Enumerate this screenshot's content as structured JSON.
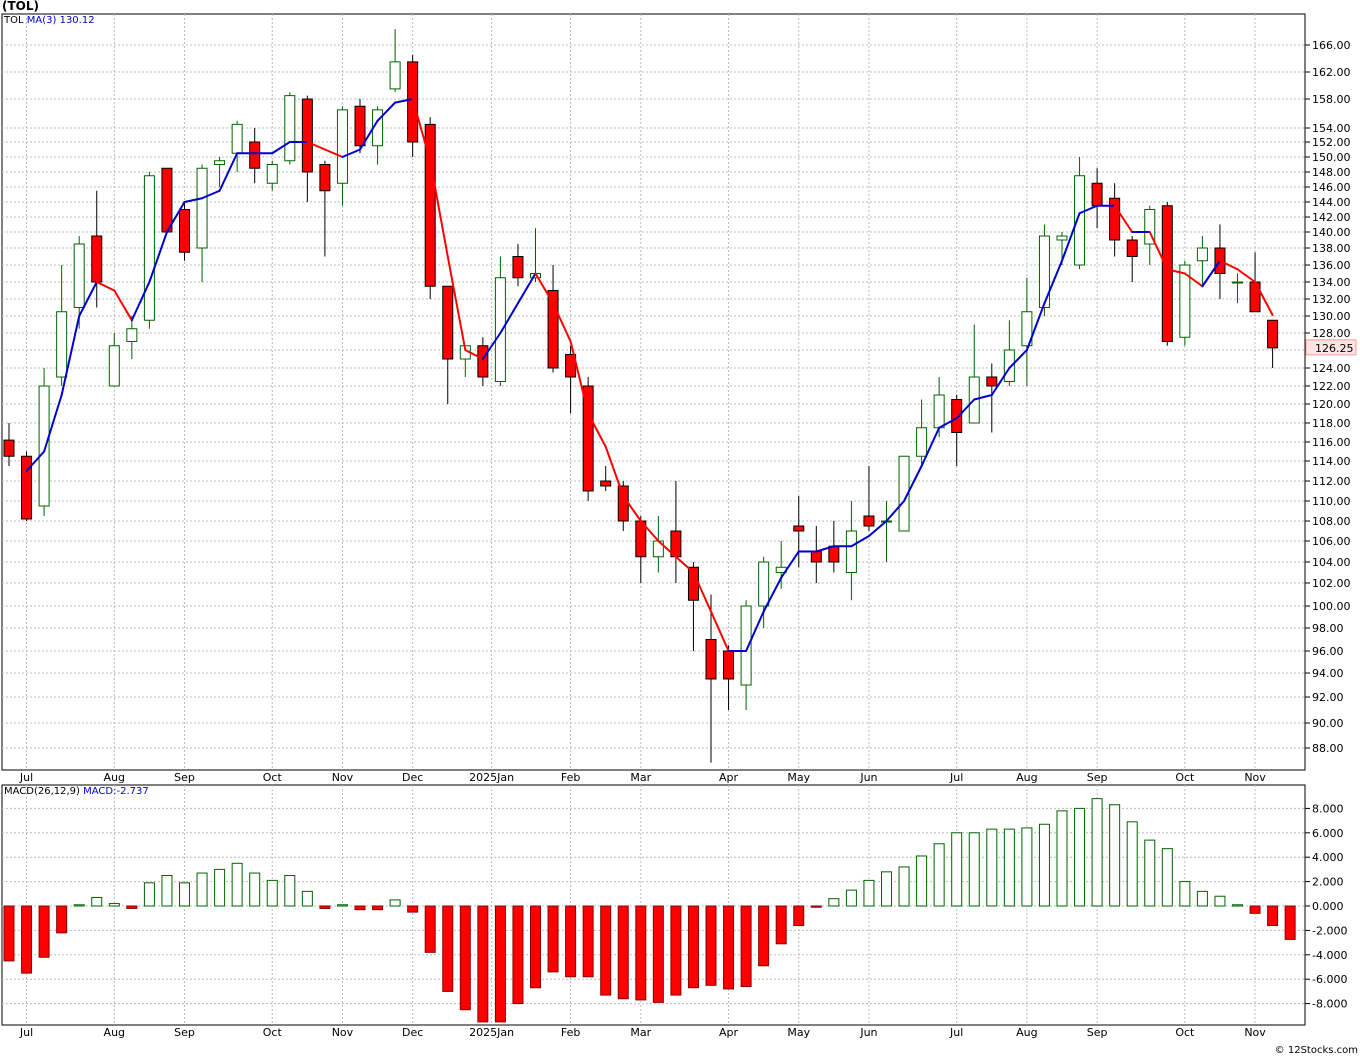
{
  "title": "(TOL)",
  "footer": "© 12Stocks.com",
  "price_panel": {
    "ticker_label": "TOL",
    "ma_label": "MA(3)",
    "ma_value": "130.12",
    "last_price_badge": "126.25",
    "up_color": "#006400",
    "down_color": "#ff0000",
    "ma_up_color": "#0000cc",
    "ma_down_color": "#ff0000"
  },
  "macd_panel": {
    "label": "MACD(26,12,9)",
    "value_label": "MACD:-2.737"
  },
  "chart_data": [
    {
      "type": "candlestick",
      "title": "(TOL)",
      "interval": "weekly",
      "ylim": [
        85,
        169
      ],
      "y_ticks": [
        "88.00",
        "90.00",
        "92.00",
        "94.00",
        "96.00",
        "98.00",
        "100.00",
        "102.00",
        "104.00",
        "106.00",
        "108.00",
        "110.00",
        "112.00",
        "114.00",
        "116.00",
        "118.00",
        "120.00",
        "122.00",
        "124.00",
        "126.00",
        "128.00",
        "130.00",
        "132.00",
        "134.00",
        "136.00",
        "138.00",
        "140.00",
        "142.00",
        "144.00",
        "146.00",
        "148.00",
        "150.00",
        "152.00",
        "154.00",
        "158.00",
        "162.00",
        "166.00"
      ],
      "x_tick_labels": [
        {
          "label": "Jul",
          "index": 1
        },
        {
          "label": "Aug",
          "index": 6
        },
        {
          "label": "Sep",
          "index": 10
        },
        {
          "label": "Oct",
          "index": 15
        },
        {
          "label": "Nov",
          "index": 19
        },
        {
          "label": "Dec",
          "index": 23
        },
        {
          "label": "2025Jan",
          "index": 27.5
        },
        {
          "label": "Feb",
          "index": 32
        },
        {
          "label": "Mar",
          "index": 36
        },
        {
          "label": "Apr",
          "index": 41
        },
        {
          "label": "May",
          "index": 45
        },
        {
          "label": "Jun",
          "index": 49
        },
        {
          "label": "Jul",
          "index": 54
        },
        {
          "label": "Aug",
          "index": 58
        },
        {
          "label": "Sep",
          "index": 62
        },
        {
          "label": "Oct",
          "index": 67
        },
        {
          "label": "Nov",
          "index": 71
        }
      ],
      "candles": [
        {
          "o": 116.2,
          "h": 118.0,
          "l": 113.5,
          "c": 114.5
        },
        {
          "o": 114.5,
          "h": 115.0,
          "l": 108.0,
          "c": 108.2
        },
        {
          "o": 109.5,
          "h": 124.0,
          "l": 108.5,
          "c": 122.0
        },
        {
          "o": 123.0,
          "h": 136.0,
          "l": 122.0,
          "c": 130.5
        },
        {
          "o": 131.0,
          "h": 139.5,
          "l": 128.5,
          "c": 138.5
        },
        {
          "o": 139.5,
          "h": 145.5,
          "l": 131.0,
          "c": 134.0
        },
        {
          "o": 122.0,
          "h": 128.0,
          "l": 122.0,
          "c": 126.5
        },
        {
          "o": 127.0,
          "h": 130.0,
          "l": 125.0,
          "c": 128.5
        },
        {
          "o": 129.5,
          "h": 148.0,
          "l": 128.5,
          "c": 147.5
        },
        {
          "o": 148.5,
          "h": 148.5,
          "l": 140.0,
          "c": 140.0
        },
        {
          "o": 143.0,
          "h": 144.0,
          "l": 136.5,
          "c": 137.5
        },
        {
          "o": 138.0,
          "h": 149.0,
          "l": 134.0,
          "c": 148.5
        },
        {
          "o": 149.0,
          "h": 150.0,
          "l": 146.0,
          "c": 149.5
        },
        {
          "o": 150.5,
          "h": 155.0,
          "l": 148.0,
          "c": 154.5
        },
        {
          "o": 152.0,
          "h": 154.0,
          "l": 146.5,
          "c": 148.5
        },
        {
          "o": 146.5,
          "h": 149.5,
          "l": 145.5,
          "c": 149.0
        },
        {
          "o": 149.5,
          "h": 159.0,
          "l": 149.0,
          "c": 158.5
        },
        {
          "o": 158.0,
          "h": 158.5,
          "l": 144.0,
          "c": 148.0
        },
        {
          "o": 149.0,
          "h": 149.5,
          "l": 137.0,
          "c": 145.5
        },
        {
          "o": 146.5,
          "h": 157.0,
          "l": 143.5,
          "c": 156.5
        },
        {
          "o": 157.0,
          "h": 158.0,
          "l": 150.5,
          "c": 151.5
        },
        {
          "o": 151.5,
          "h": 157.0,
          "l": 149.0,
          "c": 156.5
        },
        {
          "o": 159.5,
          "h": 168.5,
          "l": 159.0,
          "c": 163.5
        },
        {
          "o": 163.5,
          "h": 164.5,
          "l": 150.0,
          "c": 152.0
        },
        {
          "o": 154.5,
          "h": 155.5,
          "l": 132.0,
          "c": 133.5
        },
        {
          "o": 133.5,
          "h": 133.5,
          "l": 120.0,
          "c": 125.0
        },
        {
          "o": 125.0,
          "h": 126.5,
          "l": 123.0,
          "c": 126.5
        },
        {
          "o": 126.5,
          "h": 127.5,
          "l": 122.0,
          "c": 123.0
        },
        {
          "o": 122.5,
          "h": 137.0,
          "l": 122.0,
          "c": 134.5
        },
        {
          "o": 137.0,
          "h": 138.5,
          "l": 133.5,
          "c": 134.5
        },
        {
          "o": 134.5,
          "h": 140.5,
          "l": 134.0,
          "c": 135.0
        },
        {
          "o": 133.0,
          "h": 136.0,
          "l": 123.5,
          "c": 124.0
        },
        {
          "o": 125.5,
          "h": 126.5,
          "l": 119.0,
          "c": 123.0
        },
        {
          "o": 122.0,
          "h": 123.0,
          "l": 110.0,
          "c": 111.0
        },
        {
          "o": 112.0,
          "h": 113.5,
          "l": 111.0,
          "c": 111.5
        },
        {
          "o": 111.5,
          "h": 112.0,
          "l": 107.0,
          "c": 108.0
        },
        {
          "o": 108.0,
          "h": 108.5,
          "l": 102.0,
          "c": 104.5
        },
        {
          "o": 104.5,
          "h": 108.5,
          "l": 103.0,
          "c": 106.0
        },
        {
          "o": 107.0,
          "h": 112.0,
          "l": 102.0,
          "c": 104.5
        },
        {
          "o": 103.5,
          "h": 104.0,
          "l": 96.0,
          "c": 100.5
        },
        {
          "o": 97.0,
          "h": 101.0,
          "l": 86.0,
          "c": 93.5
        },
        {
          "o": 96.0,
          "h": 96.5,
          "l": 91.0,
          "c": 93.5
        },
        {
          "o": 93.0,
          "h": 100.5,
          "l": 91.0,
          "c": 100.0
        },
        {
          "o": 100.0,
          "h": 104.5,
          "l": 98.0,
          "c": 104.0
        },
        {
          "o": 103.0,
          "h": 106.0,
          "l": 101.5,
          "c": 103.5
        },
        {
          "o": 107.5,
          "h": 110.5,
          "l": 103.5,
          "c": 107.0
        },
        {
          "o": 105.0,
          "h": 107.5,
          "l": 102.0,
          "c": 104.0
        },
        {
          "o": 105.5,
          "h": 108.0,
          "l": 103.0,
          "c": 104.0
        },
        {
          "o": 103.0,
          "h": 110.0,
          "l": 100.5,
          "c": 107.0
        },
        {
          "o": 108.5,
          "h": 113.5,
          "l": 107.0,
          "c": 107.5
        },
        {
          "o": 108.0,
          "h": 110.0,
          "l": 104.0,
          "c": 108.0
        },
        {
          "o": 107.0,
          "h": 114.5,
          "l": 107.0,
          "c": 114.5
        },
        {
          "o": 114.5,
          "h": 120.5,
          "l": 113.5,
          "c": 117.5
        },
        {
          "o": 117.5,
          "h": 123.0,
          "l": 116.5,
          "c": 121.0
        },
        {
          "o": 120.5,
          "h": 121.0,
          "l": 113.5,
          "c": 117.0
        },
        {
          "o": 118.0,
          "h": 129.0,
          "l": 118.0,
          "c": 123.0
        },
        {
          "o": 123.0,
          "h": 124.5,
          "l": 117.0,
          "c": 122.0
        },
        {
          "o": 122.5,
          "h": 129.5,
          "l": 122.0,
          "c": 126.0
        },
        {
          "o": 126.5,
          "h": 134.5,
          "l": 122.0,
          "c": 130.5
        },
        {
          "o": 131.0,
          "h": 141.0,
          "l": 130.0,
          "c": 139.5
        },
        {
          "o": 139.0,
          "h": 140.0,
          "l": 136.0,
          "c": 139.5
        },
        {
          "o": 136.0,
          "h": 150.0,
          "l": 135.5,
          "c": 147.5
        },
        {
          "o": 146.5,
          "h": 148.5,
          "l": 140.5,
          "c": 143.5
        },
        {
          "o": 144.5,
          "h": 146.5,
          "l": 137.0,
          "c": 139.0
        },
        {
          "o": 139.0,
          "h": 139.5,
          "l": 134.0,
          "c": 137.0
        },
        {
          "o": 138.5,
          "h": 143.5,
          "l": 136.0,
          "c": 143.0
        },
        {
          "o": 143.5,
          "h": 144.0,
          "l": 126.5,
          "c": 127.0
        },
        {
          "o": 127.5,
          "h": 136.5,
          "l": 126.5,
          "c": 136.0
        },
        {
          "o": 136.5,
          "h": 139.5,
          "l": 133.5,
          "c": 138.0
        },
        {
          "o": 138.0,
          "h": 141.0,
          "l": 132.0,
          "c": 135.0
        },
        {
          "o": 134.0,
          "h": 135.0,
          "l": 131.5,
          "c": 134.0
        },
        {
          "o": 134.0,
          "h": 137.5,
          "l": 130.5,
          "c": 130.5
        },
        {
          "o": 129.5,
          "h": 129.5,
          "l": 124.0,
          "c": 126.25
        }
      ],
      "ma3": [
        null,
        113.0,
        115.0,
        121.0,
        130.0,
        134.0,
        133.0,
        129.5,
        134.0,
        140.0,
        144.0,
        144.5,
        145.5,
        150.5,
        150.5,
        150.5,
        152.0,
        152.0,
        151.0,
        150.0,
        151.0,
        155.0,
        157.5,
        158.0,
        149.5,
        137.0,
        126.0,
        125.0,
        128.0,
        131.5,
        135.0,
        131.5,
        127.0,
        119.0,
        115.5,
        110.5,
        108.0,
        106.0,
        104.5,
        103.0,
        99.5,
        96.0,
        96.0,
        99.5,
        102.5,
        105.0,
        105.0,
        105.5,
        105.5,
        106.5,
        108.0,
        110.0,
        113.5,
        117.5,
        118.5,
        120.5,
        121.0,
        124.0,
        126.0,
        131.5,
        136.5,
        142.5,
        143.5,
        143.5,
        140.0,
        140.0,
        135.5,
        135.0,
        133.5,
        136.5,
        135.5,
        134.0,
        130.12
      ]
    },
    {
      "type": "bar",
      "title": "MACD(26,12,9)",
      "ylim": [
        -10,
        10
      ],
      "y_ticks": [
        "-8.000",
        "-6.000",
        "-4.000",
        "-2.000",
        "0.000",
        "2.000",
        "4.000",
        "6.000",
        "8.000"
      ],
      "x_tick_labels": [
        "Jul",
        "Aug",
        "Sep",
        "Oct",
        "Nov",
        "Dec",
        "2025Jan",
        "Feb",
        "Mar",
        "Apr",
        "May",
        "Jun",
        "Jul",
        "Aug",
        "Sep",
        "Oct",
        "Nov"
      ],
      "values": [
        -4.5,
        -5.5,
        -4.2,
        -2.2,
        0.1,
        0.7,
        0.2,
        -0.2,
        1.9,
        2.5,
        1.9,
        2.7,
        3.0,
        3.5,
        2.7,
        2.1,
        2.5,
        1.2,
        -0.2,
        0.1,
        -0.3,
        -0.3,
        0.5,
        -0.5,
        -3.8,
        -7.0,
        -8.5,
        -9.5,
        -9.5,
        -8.0,
        -6.7,
        -5.4,
        -5.8,
        -5.8,
        -7.3,
        -7.6,
        -7.7,
        -7.9,
        -7.3,
        -6.7,
        -6.5,
        -6.8,
        -6.6,
        -4.9,
        -3.1,
        -1.6,
        -0.1,
        0.6,
        1.3,
        2.1,
        2.8,
        3.2,
        4.1,
        5.1,
        6.0,
        6.0,
        6.3,
        6.3,
        6.4,
        6.7,
        7.8,
        8.0,
        8.8,
        8.3,
        6.9,
        5.4,
        4.7,
        2.0,
        1.2,
        0.8,
        0.1,
        -0.6,
        -1.6,
        -2.737
      ]
    }
  ]
}
